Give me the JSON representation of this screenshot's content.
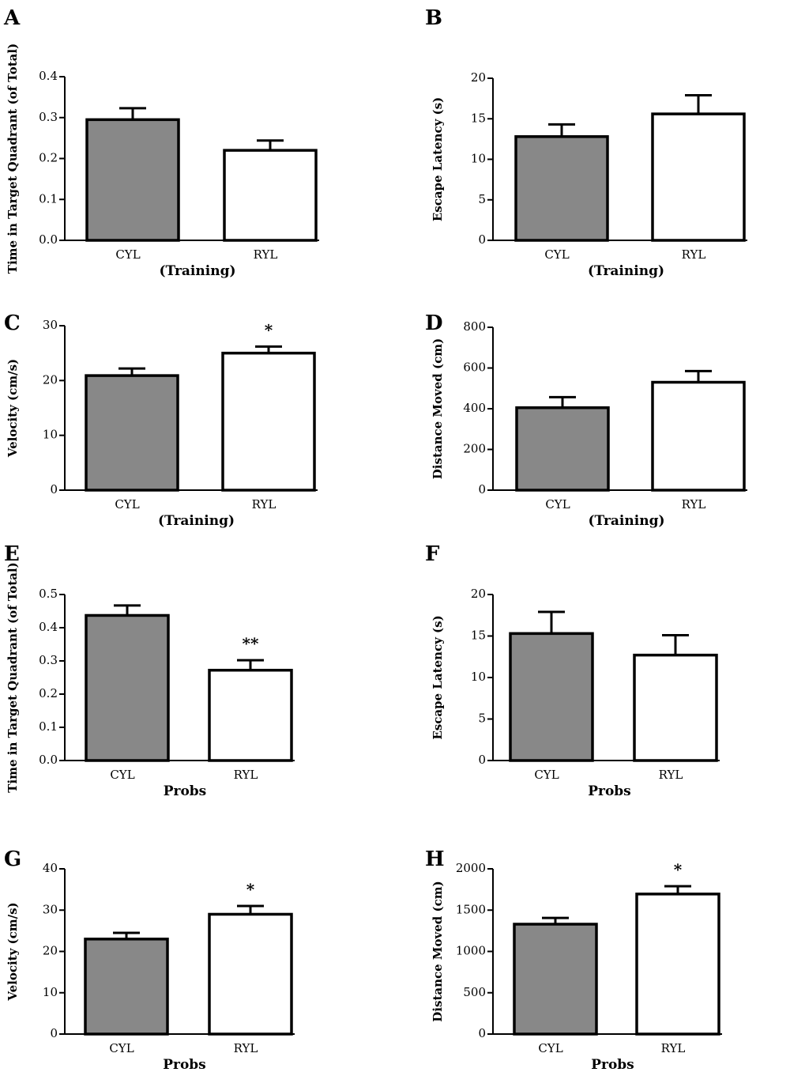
{
  "colors": {
    "cyl": "#888888",
    "ryl": "#ffffff",
    "stroke": "#000000"
  },
  "chart_data": [
    {
      "panel": "A",
      "type": "bar",
      "categories": [
        "CYL",
        "RYL"
      ],
      "values": [
        0.295,
        0.22
      ],
      "errors": [
        0.028,
        0.024
      ],
      "ylim": [
        0,
        0.4
      ],
      "yticks": [
        "0.0",
        "0.1",
        "0.2",
        "0.3",
        "0.4"
      ],
      "ylabel": "Time in Target Quadrant (of Total)",
      "xlabel": "(Training)",
      "sig": [
        "",
        ""
      ]
    },
    {
      "panel": "B",
      "type": "bar",
      "categories": [
        "CYL",
        "RYL"
      ],
      "values": [
        12.8,
        15.6
      ],
      "errors": [
        1.5,
        2.3
      ],
      "ylim": [
        0,
        20
      ],
      "yticks": [
        "0",
        "5",
        "10",
        "15",
        "20"
      ],
      "ylabel": "Escape Latency (s)",
      "xlabel": "(Training)",
      "sig": [
        "",
        ""
      ]
    },
    {
      "panel": "C",
      "type": "bar",
      "categories": [
        "CYL",
        "RYL"
      ],
      "values": [
        20.9,
        25.0
      ],
      "errors": [
        1.3,
        1.2
      ],
      "ylim": [
        0,
        30
      ],
      "yticks": [
        "0",
        "10",
        "20",
        "30"
      ],
      "ylabel": "Velocity (cm/s)",
      "xlabel": "(Training)",
      "sig": [
        "",
        "*"
      ]
    },
    {
      "panel": "D",
      "type": "bar",
      "categories": [
        "CYL",
        "RYL"
      ],
      "values": [
        405,
        530
      ],
      "errors": [
        52,
        55
      ],
      "ylim": [
        0,
        800
      ],
      "yticks": [
        "0",
        "200",
        "400",
        "600",
        "800"
      ],
      "ylabel": "Distance Moved (cm)",
      "xlabel": "(Training)",
      "sig": [
        "",
        ""
      ]
    },
    {
      "panel": "E",
      "type": "bar",
      "categories": [
        "CYL",
        "RYL"
      ],
      "values": [
        0.437,
        0.272
      ],
      "errors": [
        0.03,
        0.03
      ],
      "ylim": [
        0,
        0.5
      ],
      "yticks": [
        "0.0",
        "0.1",
        "0.2",
        "0.3",
        "0.4",
        "0.5"
      ],
      "ylabel": "Time in Target Quadrant (of Total)",
      "xlabel": "Probs",
      "sig": [
        "",
        "**"
      ]
    },
    {
      "panel": "F",
      "type": "bar",
      "categories": [
        "CYL",
        "RYL"
      ],
      "values": [
        15.3,
        12.7
      ],
      "errors": [
        2.6,
        2.4
      ],
      "ylim": [
        0,
        20
      ],
      "yticks": [
        "0",
        "5",
        "10",
        "15",
        "20"
      ],
      "ylabel": "Escape Latency (s)",
      "xlabel": "Probs",
      "sig": [
        "",
        ""
      ]
    },
    {
      "panel": "G",
      "type": "bar",
      "categories": [
        "CYL",
        "RYL"
      ],
      "values": [
        23.0,
        29.0
      ],
      "errors": [
        1.5,
        2.0
      ],
      "ylim": [
        0,
        40
      ],
      "yticks": [
        "0",
        "10",
        "20",
        "30",
        "40"
      ],
      "ylabel": "Velocity (cm/s)",
      "xlabel": "Probs",
      "sig": [
        "",
        "*"
      ]
    },
    {
      "panel": "H",
      "type": "bar",
      "categories": [
        "CYL",
        "RYL"
      ],
      "values": [
        1330,
        1695
      ],
      "errors": [
        75,
        95
      ],
      "ylim": [
        0,
        2000
      ],
      "yticks": [
        "0",
        "500",
        "1000",
        "1500",
        "2000"
      ],
      "ylabel": "Distance Moved (cm)",
      "xlabel": "Probs",
      "sig": [
        "",
        "*"
      ]
    }
  ]
}
